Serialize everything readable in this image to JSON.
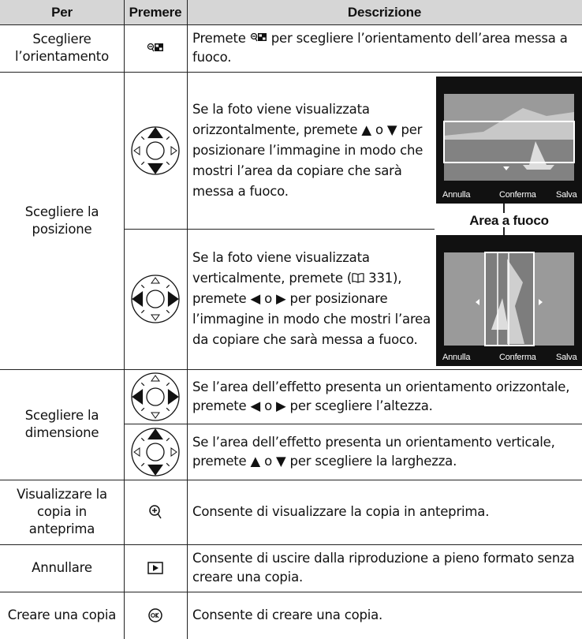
{
  "header": {
    "col1": "Per",
    "col2": "Premere",
    "col3": "Descrizione"
  },
  "rows": [
    {
      "action": "Scegliere l’orientamento",
      "description": {
        "before": "Premete",
        "after": "per scegliere l’orientamento dell’area messa a fuoco."
      }
    },
    {
      "action": "Scegliere la posizione",
      "items": [
        {
          "description": "Se la foto viene visualizzata orizzontalmente, premete ▲ o ▼ per posizionare l’immagine in modo che mostri l’area da copiare che sarà messa a fuoco."
        },
        {
          "description": {
            "before": "Se la foto viene visualizzata verticalmente, premete (",
            "page": "331",
            "after": "), premete ◀ o ▶  per posizionare l’immagine in modo che mostri l’area da copiare che sarà messa a fuoco."
          }
        }
      ],
      "image_caption": "Area a fuoco"
    },
    {
      "action": "Scegliere la dimensione",
      "items": [
        {
          "description": "Se l’area dell’effetto presenta un orientamento orizzontale, premete ◀ o ▶ per scegliere l’altezza."
        },
        {
          "description": "Se l’area dell’effetto presenta un orientamento verticale, premete ▲ o ▼ per scegliere la larghezza."
        }
      ]
    },
    {
      "action": "Visualizzare la copia in anteprima",
      "description": "Consente di visualizzare la copia in anteprima."
    },
    {
      "action": "Annullare",
      "description": "Consente di uscire dalla riproduzione a pieno formato senza creare una copia."
    },
    {
      "action": "Creare una copia",
      "description": "Consente di creare una copia."
    }
  ],
  "screen_labels": [
    "Annulla",
    "Conferma",
    "Salva"
  ]
}
